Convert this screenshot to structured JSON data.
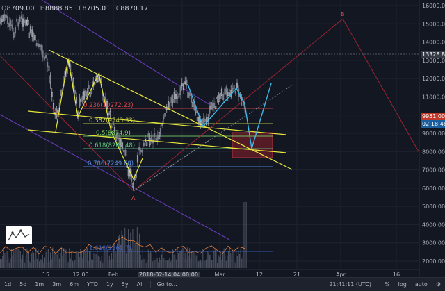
{
  "ohlc": {
    "o_key": "O",
    "o": "8709.00",
    "h_key": "H",
    "h": "8888.85",
    "l_key": "L",
    "l": "8705.01",
    "c_key": "C",
    "c": "8870.17"
  },
  "price_axis": {
    "ticks": [
      "16000.00",
      "15000.00",
      "14000.00",
      "13000.00",
      "12000.00",
      "11000.00",
      "10000.00",
      "9000.00",
      "8000.00",
      "7000.00",
      "6000.00",
      "5000.00",
      "4000.00",
      "3000.00",
      "2000.00"
    ],
    "crosshair_price": "13328.83",
    "last_price": "9951.00",
    "countdown": "02:18:48"
  },
  "time_axis": {
    "ticks": [
      {
        "label": "15"
      },
      {
        "label": "12:00"
      },
      {
        "label": "Feb"
      },
      {
        "label": "12"
      },
      {
        "label": "Mar"
      },
      {
        "label": "12"
      },
      {
        "label": "21"
      },
      {
        "label": "Apr"
      },
      {
        "label": "16"
      }
    ],
    "crosshair_time": "2018-02-14 04:00:00"
  },
  "fib_levels": [
    {
      "label": "0.236(10272.23)",
      "color": "#e04a4a"
    },
    {
      "label": "0.382(9543.33)",
      "color": "#c8d94a"
    },
    {
      "label": "0.5(8874.9)",
      "color": "#7ad36a"
    },
    {
      "label": "0.618(8202.48)",
      "color": "#5ec47a"
    },
    {
      "label": "0.786(7249.68)",
      "color": "#5a8fe0"
    },
    {
      "label": "1.618(2561.7)",
      "color": "#3d5fc0"
    }
  ],
  "wave_labels": {
    "a": "A",
    "b": "B"
  },
  "toolbar": {
    "ranges": [
      "1d",
      "5d",
      "1m",
      "3m",
      "6m",
      "YTD",
      "1y",
      "5y",
      "All"
    ],
    "goto": "Go to...",
    "clock": "21:41:11 (UTC)",
    "percent": "%",
    "log": "log",
    "auto": "auto"
  },
  "colors": {
    "background": "#131722",
    "up_candle": "#c9ccd2",
    "down_candle": "#7a7e8a",
    "trend_yellow": "#e8e83a",
    "channel_purple": "#6a3cc4",
    "wave_red": "#9b2432",
    "projection_cyan": "#3fb8e8"
  }
}
